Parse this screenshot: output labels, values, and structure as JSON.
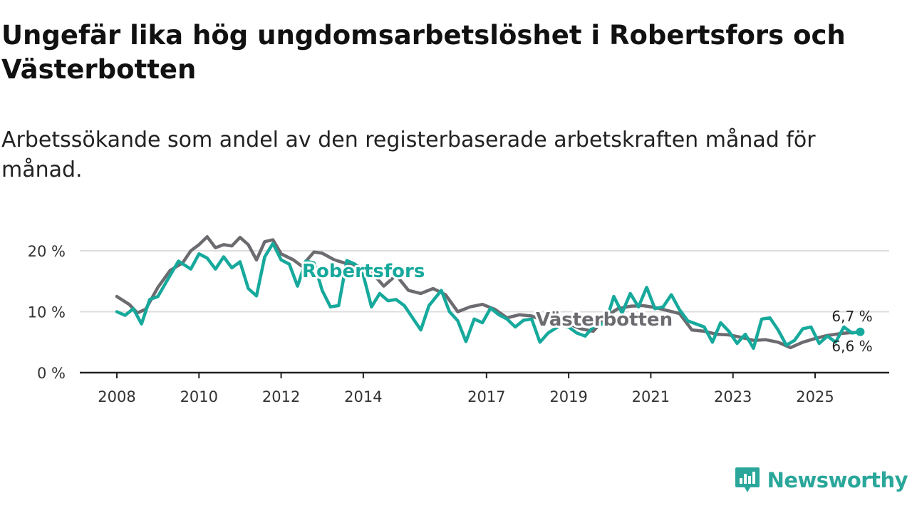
{
  "title": "Ungefär lika hög ungdomsarbetslöshet i Robertsfors och Västerbotten",
  "subtitle": "Arbetssökande som andel av den registerbaserade arbetskraften månad för månad.",
  "brand": "Newsworthy",
  "colors": {
    "robertsfors": "#16a99c",
    "vasterbotten": "#6b6b70",
    "grid": "#dddddd",
    "axis": "#222222",
    "brand": "#2aa79a"
  },
  "chart_data": {
    "type": "line",
    "xlim": [
      2008,
      2026.3
    ],
    "ylim": [
      0,
      22.5
    ],
    "y_ticks": [
      0,
      10,
      20
    ],
    "y_tick_labels": [
      "0 %",
      "10 %",
      "20 %"
    ],
    "x_ticks": [
      2008,
      2010,
      2012,
      2014,
      2017,
      2019,
      2021,
      2023,
      2025
    ],
    "x_tick_labels": [
      "2008",
      "2010",
      "2012",
      "2014",
      "2017",
      "2019",
      "2021",
      "2023",
      "2025"
    ],
    "series": [
      {
        "name": "Västerbotten",
        "label": "Västerbotten",
        "end_label": "6,6 %",
        "x": [
          2008.0,
          2008.3,
          2008.5,
          2008.7,
          2009.0,
          2009.3,
          2009.6,
          2009.8,
          2010.0,
          2010.2,
          2010.4,
          2010.6,
          2010.8,
          2011.0,
          2011.2,
          2011.4,
          2011.6,
          2011.8,
          2012.0,
          2012.3,
          2012.5,
          2012.8,
          2013.0,
          2013.3,
          2013.6,
          2013.9,
          2014.2,
          2014.5,
          2014.8,
          2015.1,
          2015.4,
          2015.7,
          2016.0,
          2016.3,
          2016.6,
          2016.9,
          2017.2,
          2017.5,
          2017.8,
          2018.1,
          2018.4,
          2018.7,
          2019.0,
          2019.3,
          2019.6,
          2019.9,
          2020.2,
          2020.5,
          2020.8,
          2021.1,
          2021.4,
          2021.7,
          2022.0,
          2022.3,
          2022.6,
          2022.9,
          2023.2,
          2023.5,
          2023.8,
          2024.1,
          2024.4,
          2024.7,
          2025.0,
          2025.3,
          2025.6,
          2025.9,
          2026.1
        ],
        "values": [
          12.5,
          11.2,
          9.8,
          10.4,
          14.0,
          16.8,
          18.0,
          20.0,
          21.0,
          22.3,
          20.5,
          21.0,
          20.8,
          22.2,
          21.0,
          18.5,
          21.5,
          21.8,
          19.5,
          18.5,
          17.5,
          19.8,
          19.6,
          18.5,
          17.9,
          17.4,
          16.5,
          14.2,
          16.0,
          13.5,
          13.0,
          13.8,
          12.8,
          10.0,
          10.8,
          11.2,
          10.4,
          9.0,
          9.5,
          9.3,
          8.5,
          8.3,
          8.0,
          7.2,
          6.8,
          9.2,
          10.5,
          10.9,
          11.0,
          10.7,
          10.2,
          9.7,
          7.0,
          6.8,
          6.3,
          6.2,
          5.8,
          5.3,
          5.4,
          5.0,
          4.1,
          5.0,
          5.6,
          6.1,
          6.4,
          6.6,
          6.6
        ]
      },
      {
        "name": "Robertsfors",
        "label": "Robertsfors",
        "end_label": "6,7 %",
        "x": [
          2008.0,
          2008.2,
          2008.4,
          2008.6,
          2008.8,
          2009.0,
          2009.3,
          2009.5,
          2009.8,
          2010.0,
          2010.2,
          2010.4,
          2010.6,
          2010.8,
          2011.0,
          2011.2,
          2011.4,
          2011.6,
          2011.8,
          2012.0,
          2012.2,
          2012.4,
          2012.6,
          2012.8,
          2013.0,
          2013.2,
          2013.4,
          2013.6,
          2013.8,
          2014.0,
          2014.2,
          2014.4,
          2014.6,
          2014.8,
          2015.0,
          2015.2,
          2015.4,
          2015.6,
          2015.9,
          2016.1,
          2016.3,
          2016.5,
          2016.7,
          2016.9,
          2017.1,
          2017.3,
          2017.5,
          2017.7,
          2017.9,
          2018.1,
          2018.3,
          2018.5,
          2018.8,
          2019.0,
          2019.2,
          2019.4,
          2019.6,
          2019.9,
          2020.1,
          2020.3,
          2020.5,
          2020.7,
          2020.9,
          2021.1,
          2021.3,
          2021.5,
          2021.7,
          2021.9,
          2022.1,
          2022.3,
          2022.5,
          2022.7,
          2022.9,
          2023.1,
          2023.3,
          2023.5,
          2023.7,
          2023.9,
          2024.1,
          2024.3,
          2024.5,
          2024.7,
          2024.9,
          2025.1,
          2025.3,
          2025.5,
          2025.7,
          2025.9,
          2026.1
        ],
        "values": [
          10.0,
          9.4,
          10.5,
          8.0,
          12.0,
          12.5,
          16.0,
          18.3,
          17.0,
          19.5,
          18.8,
          17.0,
          19.0,
          17.2,
          18.2,
          13.8,
          12.6,
          19.0,
          21.2,
          18.5,
          17.8,
          14.2,
          18.3,
          18.0,
          13.5,
          10.8,
          11.0,
          18.4,
          17.8,
          16.0,
          10.8,
          13.0,
          11.8,
          12.0,
          11.0,
          9.0,
          7.0,
          11.0,
          13.5,
          10.0,
          8.5,
          5.1,
          8.8,
          8.2,
          10.6,
          9.5,
          8.8,
          7.5,
          8.6,
          8.8,
          5.0,
          6.5,
          7.8,
          7.5,
          6.5,
          6.0,
          7.5,
          8.2,
          12.5,
          9.8,
          13.0,
          10.8,
          14.0,
          10.5,
          10.8,
          12.8,
          10.3,
          8.5,
          8.0,
          7.5,
          5.0,
          8.2,
          6.8,
          4.8,
          6.3,
          4.0,
          8.8,
          9.0,
          7.0,
          4.5,
          5.3,
          7.2,
          7.5,
          4.8,
          6.0,
          5.0,
          7.5,
          6.5,
          6.7
        ]
      }
    ]
  }
}
